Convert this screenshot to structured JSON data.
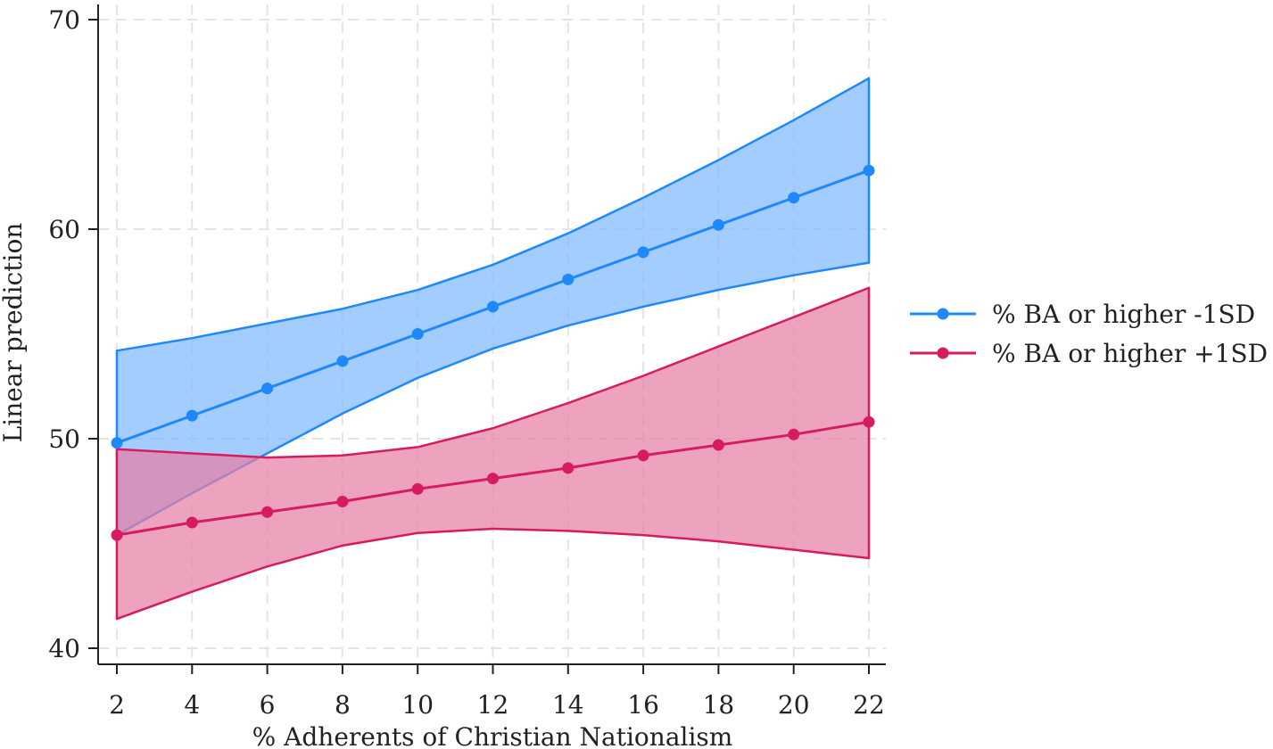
{
  "chart_data": {
    "type": "line",
    "title": "",
    "xlabel": "% Adherents of Christian Nationalism",
    "ylabel": "Linear prediction",
    "x": [
      2,
      4,
      6,
      8,
      10,
      12,
      14,
      16,
      18,
      20,
      22
    ],
    "xticks": [
      "2",
      "4",
      "6",
      "8",
      "10",
      "12",
      "14",
      "16",
      "18",
      "20",
      "22"
    ],
    "yticks": [
      "40",
      "50",
      "60",
      "70"
    ],
    "xlim": [
      2,
      22
    ],
    "ylim": [
      40,
      70
    ],
    "grid": true,
    "legend_position": "right",
    "series": [
      {
        "name": "% BA or higher -1SD",
        "color": "#1e88ff",
        "fill": "#80b8ff",
        "values": [
          49.8,
          51.1,
          52.4,
          53.7,
          55.0,
          56.3,
          57.6,
          58.9,
          60.2,
          61.5,
          62.8
        ],
        "ci_upper": [
          54.2,
          54.8,
          55.5,
          56.2,
          57.1,
          58.3,
          59.8,
          61.5,
          63.3,
          65.2,
          67.2
        ],
        "ci_lower": [
          45.4,
          47.4,
          49.3,
          51.2,
          52.9,
          54.3,
          55.4,
          56.3,
          57.1,
          57.8,
          58.4
        ]
      },
      {
        "name": "% BA or higher +1SD",
        "color": "#d81b60",
        "fill": "#e67fa4",
        "values": [
          45.4,
          46.0,
          46.5,
          47.0,
          47.6,
          48.1,
          48.6,
          49.2,
          49.7,
          50.2,
          50.8
        ],
        "ci_upper": [
          49.5,
          49.3,
          49.1,
          49.2,
          49.6,
          50.5,
          51.7,
          53.0,
          54.4,
          55.8,
          57.2
        ],
        "ci_lower": [
          41.4,
          42.7,
          43.9,
          44.9,
          45.5,
          45.7,
          45.6,
          45.4,
          45.1,
          44.7,
          44.3
        ]
      }
    ]
  }
}
